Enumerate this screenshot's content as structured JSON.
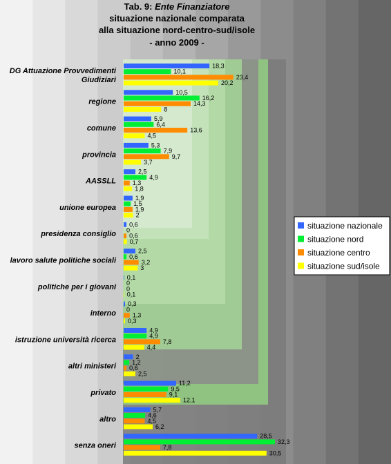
{
  "chart_data": {
    "type": "bar",
    "orientation": "horizontal",
    "title": {
      "line1_prefix": "Tab. 9: ",
      "line1_italic": "Ente Finanziatore",
      "line2": "situazione nazionale comparata",
      "line3": "alla situazione nord-centro-sud/isole",
      "line4": "- anno 2009 -"
    },
    "categories": [
      [
        "DG Attuazione Provvedimenti",
        "Giudiziari"
      ],
      [
        "regione"
      ],
      [
        "comune"
      ],
      [
        "provincia"
      ],
      [
        "AASSLL"
      ],
      [
        "unione europea"
      ],
      [
        "presidenza consiglio"
      ],
      [
        "lavoro salute politiche sociali"
      ],
      [
        "politiche per i giovani"
      ],
      [
        "interno"
      ],
      [
        "istruzione università ricerca"
      ],
      [
        "altri ministeri"
      ],
      [
        "privato"
      ],
      [
        "altro"
      ],
      [
        "senza oneri"
      ]
    ],
    "series": [
      {
        "name": "situazione nazionale",
        "color": "#3366ff",
        "values": [
          18.3,
          10.5,
          5.9,
          5.3,
          2.5,
          1.9,
          0.6,
          2.5,
          0.1,
          0.3,
          4.9,
          2,
          11.2,
          5.7,
          28.5
        ],
        "labels": [
          "18,3",
          "10,5",
          "5,9",
          "5,3",
          "2,5",
          "1,9",
          "0,6",
          "2,5",
          "0,1",
          "0,3",
          "4,9",
          "2",
          "11,2",
          "5,7",
          "28,5"
        ]
      },
      {
        "name": "situazione nord",
        "color": "#00ee33",
        "values": [
          10.1,
          16.2,
          6.4,
          7.9,
          4.9,
          1.5,
          0,
          0.6,
          0,
          0,
          4.9,
          1.2,
          9.5,
          4.6,
          32.3
        ],
        "labels": [
          "10,1",
          "16,2",
          "6,4",
          "7,9",
          "4,9",
          "1,5",
          "0",
          "0,6",
          "0",
          "0",
          "4,9",
          "1,2",
          "9,5",
          "4,6",
          "32,3"
        ]
      },
      {
        "name": "situazione centro",
        "color": "#ff8c00",
        "values": [
          23.4,
          14.3,
          13.6,
          9.7,
          1.3,
          1.9,
          0.6,
          3.2,
          0,
          1.3,
          7.8,
          0.6,
          9.1,
          4.5,
          7.8
        ],
        "labels": [
          "23,4",
          "14,3",
          "13,6",
          "9,7",
          "1,3",
          "1,9",
          "0,6",
          "3,2",
          "0",
          "1,3",
          "7,8",
          "0,6",
          "9,1",
          "4,5",
          "7,8"
        ]
      },
      {
        "name": "situazione sud/isole",
        "color": "#ffff00",
        "values": [
          20.2,
          8,
          4.5,
          3.7,
          1.8,
          2,
          0.7,
          3,
          0.1,
          0.3,
          4.4,
          2.5,
          12.1,
          6.2,
          30.5
        ],
        "labels": [
          "20,2",
          "8",
          "4,5",
          "3,7",
          "1,8",
          "2",
          "0,7",
          "3",
          "0,1",
          "0,3",
          "4,4",
          "2,5",
          "12,1",
          "6,2",
          "30,5"
        ]
      }
    ],
    "xlim": [
      0,
      36
    ],
    "grid": false,
    "legend_position": "right",
    "background_colors": [
      "#f2f2f2",
      "#e6e6e6",
      "#d9d9d9",
      "#cccccc",
      "#bfbfbf",
      "#b3b3b3",
      "#a6a6a6",
      "#999999",
      "#8c8c8c",
      "#808080",
      "#737373",
      "#666666"
    ],
    "decorative_colors": [
      "#d7ead1",
      "#c6e3bd",
      "#b5dca9",
      "#a4d595",
      "#93ce81"
    ]
  }
}
